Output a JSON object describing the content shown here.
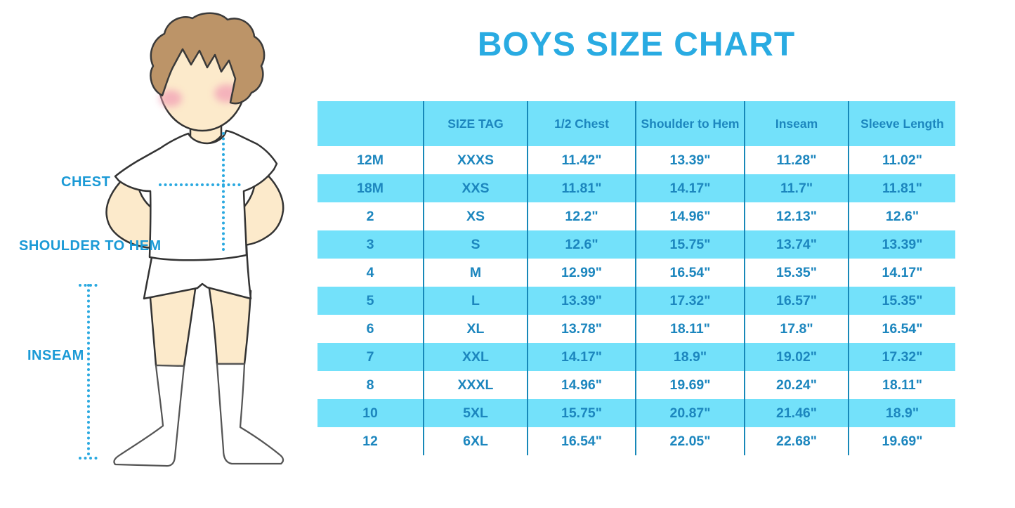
{
  "title": "BOYS SIZE CHART",
  "figure": {
    "labels": {
      "chest": "CHEST",
      "shoulder_to_hem": "SHOULDER TO HEM",
      "inseam": "INSEAM"
    }
  },
  "chart_data": {
    "type": "table",
    "title": "BOYS SIZE CHART",
    "columns": [
      "",
      "SIZE TAG",
      "1/2 Chest",
      "Shoulder to Hem",
      "Inseam",
      "Sleeve Length"
    ],
    "rows": [
      [
        "12M",
        "XXXS",
        "11.42\"",
        "13.39\"",
        "11.28\"",
        "11.02\""
      ],
      [
        "18M",
        "XXS",
        "11.81\"",
        "14.17\"",
        "11.7\"",
        "11.81\""
      ],
      [
        "2",
        "XS",
        "12.2\"",
        "14.96\"",
        "12.13\"",
        "12.6\""
      ],
      [
        "3",
        "S",
        "12.6\"",
        "15.75\"",
        "13.74\"",
        "13.39\""
      ],
      [
        "4",
        "M",
        "12.99\"",
        "16.54\"",
        "15.35\"",
        "14.17\""
      ],
      [
        "5",
        "L",
        "13.39\"",
        "17.32\"",
        "16.57\"",
        "15.35\""
      ],
      [
        "6",
        "XL",
        "13.78\"",
        "18.11\"",
        "17.8\"",
        "16.54\""
      ],
      [
        "7",
        "XXL",
        "14.17\"",
        "18.9\"",
        "19.02\"",
        "17.32\""
      ],
      [
        "8",
        "XXXL",
        "14.96\"",
        "19.69\"",
        "20.24\"",
        "18.11\""
      ],
      [
        "10",
        "5XL",
        "15.75\"",
        "20.87\"",
        "21.46\"",
        "18.9\""
      ],
      [
        "12",
        "6XL",
        "16.54\"",
        "22.05\"",
        "22.68\"",
        "19.69\""
      ]
    ],
    "layout_hints": {
      "striping": "alternating white and cyan rows, cyan header",
      "grid": "vertical column separators only"
    }
  },
  "colors": {
    "accent_title": "#29abe2",
    "label_blue": "#1b9ad6",
    "row_cyan": "#73e1fa",
    "table_text": "#1c86be",
    "column_divider": "#1788b8",
    "dotted_line": "#2aa9e0",
    "hair": "#bc9468",
    "skin": "#fceacb",
    "blush": "#f2a0b6"
  }
}
